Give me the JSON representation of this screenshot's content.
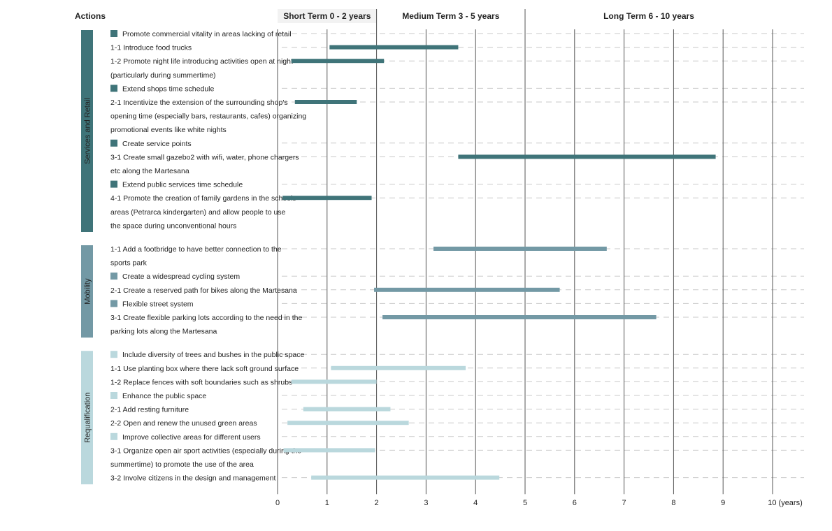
{
  "chart_data": {
    "type": "bar",
    "title": "",
    "xlabel": "",
    "ylabel": "",
    "xlim": [
      0,
      10
    ],
    "x_ticks": [
      "0",
      "1",
      "2",
      "3",
      "4",
      "5",
      "6",
      "7",
      "8",
      "9",
      "10 (years)"
    ],
    "column_header": "Actions",
    "term_headers": [
      {
        "label": "Short Term 0  -  2 years",
        "start": 0,
        "end": 2
      },
      {
        "label": "Medium Term 3  -  5 years",
        "start": 2,
        "end": 5
      },
      {
        "label": "Long Term 6  -  10 years",
        "start": 5,
        "end": 10
      }
    ],
    "grid": true,
    "groups": [
      {
        "name": "Services and Retail",
        "color": "#3f7479",
        "rows": [
          {
            "label": "Promote commercial vitality in areas lacking of retail",
            "is_header": true,
            "text_lines": [
              "Promote commercial vitality in areas lacking of retail"
            ]
          },
          {
            "label": "1-1  Introduce food trucks",
            "text_lines": [
              "1-1  Introduce food trucks"
            ],
            "start": 1.05,
            "end": 3.65
          },
          {
            "label": "1-2  Promote night life introducing activities open at night (particularly during summertime)",
            "text_lines": [
              "1-2  Promote night life introducing activities open at night",
              "(particularly during summertime)"
            ],
            "start": 0.28,
            "end": 2.15
          },
          {
            "label": "Extend shops time schedule",
            "is_header": true,
            "text_lines": [
              "Extend shops time schedule"
            ]
          },
          {
            "label": "2-1  Incentivize the extension of the surrounding shop's opening time (especially bars, restaurants, cafes) organizing promotional events like white nights",
            "text_lines": [
              "2-1  Incentivize the extension of the surrounding shop's",
              "opening time (especially bars, restaurants, cafes) organizing",
              "promotional events like white nights"
            ],
            "start": 0.35,
            "end": 1.6
          },
          {
            "label": "Create service points",
            "is_header": true,
            "text_lines": [
              "Create service points"
            ]
          },
          {
            "label": "3-1  Create small gazebo2 with wifi, water, phone chargers etc along the Martesana",
            "text_lines": [
              "3-1  Create small gazebo2 with wifi, water, phone chargers",
              "etc along the Martesana"
            ],
            "start": 3.65,
            "end": 8.85
          },
          {
            "label": "Extend public services time schedule",
            "is_header": true,
            "text_lines": [
              "Extend public services time schedule"
            ]
          },
          {
            "label": "4-1  Promote the creation of family gardens in the schools areas (Petrarca kindergarten) and allow people to use the space during unconventional hours",
            "text_lines": [
              "4-1  Promote the creation of family gardens in the schools",
              "areas (Petrarca kindergarten) and allow people to use",
              "the space during unconventional hours"
            ],
            "start": 0.1,
            "end": 1.9
          }
        ]
      },
      {
        "name": "Mobility",
        "color": "#7399a5",
        "rows": [
          {
            "label": "1-1  Add a footbridge to have better connection to the sports park",
            "text_lines": [
              "1-1  Add a footbridge to have better connection to the",
              "sports park"
            ],
            "start": 3.15,
            "end": 6.65
          },
          {
            "label": "Create a widespread cycling system",
            "is_header": true,
            "text_lines": [
              "Create a widespread cycling system"
            ]
          },
          {
            "label": "2-1 Create a reserved path for bikes along the Martesana",
            "text_lines": [
              "2-1 Create a reserved path for bikes along the Martesana"
            ],
            "start": 1.95,
            "end": 5.7
          },
          {
            "label": "Flexible street system",
            "is_header": true,
            "text_lines": [
              "Flexible street system"
            ]
          },
          {
            "label": "3-1  Create flexible parking lots according to the need in the parking lots along the Martesana",
            "text_lines": [
              "3-1  Create flexible parking lots according to the need in the",
              "parking lots along the Martesana"
            ],
            "start": 2.12,
            "end": 7.65
          }
        ]
      },
      {
        "name": "Requalification",
        "color": "#bad8dd",
        "rows": [
          {
            "label": "Include diversity of trees and bushes in the public space",
            "is_header": true,
            "text_lines": [
              "Include diversity of trees and bushes in the public space"
            ]
          },
          {
            "label": "1-1  Use planting box where there lack soft ground surface",
            "text_lines": [
              "1-1  Use planting box where there lack soft ground surface"
            ],
            "start": 1.08,
            "end": 3.8
          },
          {
            "label": "1-2  Replace fences with soft boundaries such as shrubs",
            "text_lines": [
              "1-2  Replace fences with soft boundaries such as shrubs"
            ],
            "start": 0.28,
            "end": 2.0
          },
          {
            "label": "Enhance the public space",
            "is_header": true,
            "text_lines": [
              "Enhance the public space"
            ]
          },
          {
            "label": "2-1  Add resting furniture",
            "text_lines": [
              "2-1  Add resting furniture"
            ],
            "start": 0.52,
            "end": 2.28
          },
          {
            "label": "2-2  Open and renew the unused green areas",
            "text_lines": [
              "2-2  Open and renew the unused green areas"
            ],
            "start": 0.2,
            "end": 2.65
          },
          {
            "label": "Improve collective areas for different users",
            "is_header": true,
            "text_lines": [
              "Improve collective areas for different users"
            ]
          },
          {
            "label": "3-1  Organize open air sport activities (especially during the summertime) to promote the use of the area",
            "text_lines": [
              "3-1  Organize open air sport activities (especially during the",
              "summertime) to promote the use of the area"
            ],
            "start": 0.12,
            "end": 1.97
          },
          {
            "label": "3-2  Involve citizens in the design and management",
            "text_lines": [
              "3-2  Involve citizens in the design and management"
            ],
            "start": 0.68,
            "end": 4.48
          }
        ]
      }
    ]
  }
}
